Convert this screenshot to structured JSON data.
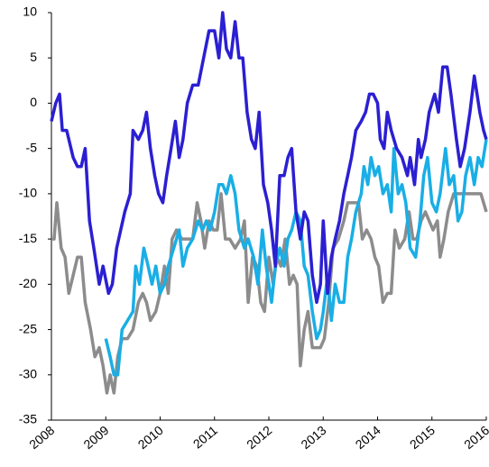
{
  "chart_data": {
    "type": "line",
    "xlim": [
      2008,
      2016
    ],
    "xticks": [
      2008,
      2009,
      2010,
      2011,
      2012,
      2013,
      2014,
      2015,
      2016
    ],
    "ylim": [
      -35,
      10
    ],
    "yticks": [
      -35,
      -30,
      -25,
      -20,
      -15,
      -10,
      -5,
      0,
      5,
      10
    ],
    "grid": false,
    "series": [
      {
        "color": "#8c8c8c",
        "x": [
          2008.0,
          2008.05,
          2008.1,
          2008.18,
          2008.25,
          2008.32,
          2008.4,
          2008.48,
          2008.55,
          2008.62,
          2008.72,
          2008.8,
          2008.88,
          2008.95,
          2009.02,
          2009.08,
          2009.15,
          2009.22,
          2009.3,
          2009.4,
          2009.5,
          2009.6,
          2009.68,
          2009.75,
          2009.82,
          2009.92,
          2010.0,
          2010.08,
          2010.15,
          2010.22,
          2010.3,
          2010.4,
          2010.5,
          2010.6,
          2010.68,
          2010.75,
          2010.82,
          2010.9,
          2010.98,
          2011.05,
          2011.12,
          2011.2,
          2011.28,
          2011.38,
          2011.48,
          2011.55,
          2011.62,
          2011.7,
          2011.78,
          2011.85,
          2011.92,
          2012.0,
          2012.08,
          2012.15,
          2012.22,
          2012.3,
          2012.38,
          2012.45,
          2012.52,
          2012.58,
          2012.65,
          2012.72,
          2012.8,
          2012.88,
          2012.95,
          2013.02,
          2013.1,
          2013.18,
          2013.28,
          2013.38,
          2013.45,
          2013.55,
          2013.65,
          2013.72,
          2013.8,
          2013.88,
          2013.95,
          2014.02,
          2014.1,
          2014.18,
          2014.25,
          2014.32,
          2014.4,
          2014.5,
          2014.58,
          2014.65,
          2014.72,
          2014.8,
          2014.88,
          2014.95,
          2015.02,
          2015.1,
          2015.15,
          2015.22,
          2015.3,
          2015.4,
          2015.5,
          2015.6,
          2015.7,
          2015.8,
          2015.9,
          2016.0
        ],
        "values": [
          -15,
          -15,
          -11,
          -16,
          -17,
          -21,
          -19,
          -17,
          -17,
          -22,
          -25,
          -28,
          -27,
          -29,
          -32,
          -30,
          -32,
          -28,
          -26,
          -26,
          -25,
          -22,
          -21,
          -22,
          -24,
          -23,
          -21,
          -18,
          -21,
          -15,
          -14,
          -15,
          -15,
          -15,
          -11,
          -13,
          -16,
          -13,
          -14,
          -14,
          -10,
          -15,
          -15,
          -16,
          -15,
          -13,
          -22,
          -17,
          -18,
          -22,
          -23,
          -17,
          -20,
          -17,
          -18,
          -15,
          -20,
          -19,
          -20,
          -29,
          -25,
          -23,
          -27,
          -27,
          -27,
          -26,
          -22,
          -16,
          -15,
          -13,
          -11,
          -11,
          -11,
          -15,
          -14,
          -15,
          -17,
          -18,
          -22,
          -21,
          -21,
          -14,
          -16,
          -15,
          -12,
          -15,
          -15,
          -13,
          -12,
          -13,
          -14,
          -13,
          -17,
          -15,
          -12,
          -10,
          -10,
          -10,
          -10,
          -10,
          -10,
          -12
        ]
      },
      {
        "color": "#19aee6",
        "x": [
          2009.0,
          2009.08,
          2009.15,
          2009.22,
          2009.3,
          2009.4,
          2009.5,
          2009.55,
          2009.62,
          2009.7,
          2009.78,
          2009.85,
          2009.92,
          2010.0,
          2010.08,
          2010.15,
          2010.25,
          2010.35,
          2010.42,
          2010.5,
          2010.6,
          2010.7,
          2010.78,
          2010.85,
          2010.92,
          2011.0,
          2011.08,
          2011.15,
          2011.22,
          2011.3,
          2011.38,
          2011.45,
          2011.55,
          2011.62,
          2011.72,
          2011.8,
          2011.88,
          2011.95,
          2012.05,
          2012.12,
          2012.2,
          2012.28,
          2012.35,
          2012.42,
          2012.5,
          2012.58,
          2012.65,
          2012.72,
          2012.8,
          2012.88,
          2012.95,
          2013.0,
          2013.08,
          2013.15,
          2013.22,
          2013.3,
          2013.38,
          2013.45,
          2013.52,
          2013.6,
          2013.7,
          2013.75,
          2013.82,
          2013.88,
          2013.95,
          2014.02,
          2014.1,
          2014.18,
          2014.25,
          2014.3,
          2014.38,
          2014.45,
          2014.52,
          2014.6,
          2014.7,
          2014.78,
          2014.85,
          2014.92,
          2015.0,
          2015.08,
          2015.15,
          2015.25,
          2015.32,
          2015.4,
          2015.48,
          2015.55,
          2015.62,
          2015.7,
          2015.78,
          2015.85,
          2015.92,
          2016.0
        ],
        "values": [
          -26,
          -28,
          -30,
          -30,
          -25,
          -24,
          -23,
          -18,
          -20,
          -16,
          -18,
          -20,
          -18,
          -21,
          -20,
          -18,
          -16,
          -14,
          -18,
          -16,
          -15,
          -13,
          -14,
          -13,
          -14,
          -12,
          -9,
          -9,
          -10,
          -8,
          -10,
          -14,
          -16,
          -15,
          -17,
          -20,
          -14,
          -18,
          -22,
          -18,
          -16,
          -18,
          -15,
          -14,
          -12,
          -13,
          -18,
          -19,
          -23,
          -26,
          -25,
          -23,
          -19,
          -24,
          -20,
          -22,
          -22,
          -17,
          -15,
          -12,
          -10,
          -7,
          -9,
          -6,
          -8,
          -7,
          -10,
          -9,
          -12,
          -5,
          -10,
          -9,
          -11,
          -16,
          -17,
          -13,
          -8,
          -6,
          -11,
          -12,
          -10,
          -5,
          -9,
          -8,
          -13,
          -12,
          -8,
          -6,
          -9,
          -6,
          -7,
          -4
        ]
      },
      {
        "color": "#2b1fd2",
        "x": [
          2008.0,
          2008.08,
          2008.15,
          2008.2,
          2008.28,
          2008.4,
          2008.48,
          2008.55,
          2008.62,
          2008.7,
          2008.78,
          2008.88,
          2008.95,
          2009.05,
          2009.12,
          2009.2,
          2009.35,
          2009.45,
          2009.5,
          2009.6,
          2009.68,
          2009.75,
          2009.82,
          2009.9,
          2009.97,
          2010.05,
          2010.12,
          2010.2,
          2010.28,
          2010.35,
          2010.42,
          2010.5,
          2010.6,
          2010.7,
          2010.8,
          2010.9,
          2011.0,
          2011.08,
          2011.15,
          2011.22,
          2011.3,
          2011.38,
          2011.45,
          2011.52,
          2011.6,
          2011.68,
          2011.75,
          2011.82,
          2011.9,
          2011.98,
          2012.05,
          2012.12,
          2012.2,
          2012.28,
          2012.35,
          2012.42,
          2012.5,
          2012.58,
          2012.65,
          2012.72,
          2012.8,
          2012.88,
          2012.95,
          2013.0,
          2013.08,
          2013.15,
          2013.22,
          2013.3,
          2013.38,
          2013.45,
          2013.52,
          2013.6,
          2013.7,
          2013.78,
          2013.85,
          2013.92,
          2014.0,
          2014.05,
          2014.12,
          2014.18,
          2014.25,
          2014.35,
          2014.45,
          2014.55,
          2014.6,
          2014.68,
          2014.75,
          2014.8,
          2014.88,
          2014.95,
          2015.05,
          2015.12,
          2015.2,
          2015.28,
          2015.35,
          2015.45,
          2015.52,
          2015.6,
          2015.7,
          2015.78,
          2015.88,
          2015.95,
          2016.0
        ],
        "values": [
          -2,
          0,
          1,
          -3,
          -3,
          -6,
          -7,
          -7,
          -5,
          -13,
          -16,
          -20,
          -18,
          -21,
          -20,
          -16,
          -12,
          -10,
          -3,
          -4,
          -3,
          -1,
          -5,
          -8,
          -10,
          -11,
          -8,
          -5,
          -2,
          -6,
          -4,
          0,
          2,
          2,
          5,
          8,
          8,
          5,
          10,
          6,
          5,
          9,
          5,
          5,
          -1,
          -4,
          -5,
          -1,
          -9,
          -11,
          -14,
          -18,
          -8,
          -8,
          -6,
          -5,
          -12,
          -15,
          -12,
          -13,
          -19,
          -22,
          -20,
          -13,
          -21,
          -17,
          -15,
          -13,
          -10,
          -8,
          -6,
          -3,
          -2,
          -1,
          1,
          1,
          0,
          -4,
          -5,
          -1,
          -3,
          -5,
          -6,
          -8,
          -6,
          -9,
          -4,
          -6,
          -4,
          -1,
          1,
          -1,
          4,
          4,
          1,
          -4,
          -7,
          -5,
          -1,
          3,
          -1,
          -3,
          -4
        ]
      }
    ]
  }
}
